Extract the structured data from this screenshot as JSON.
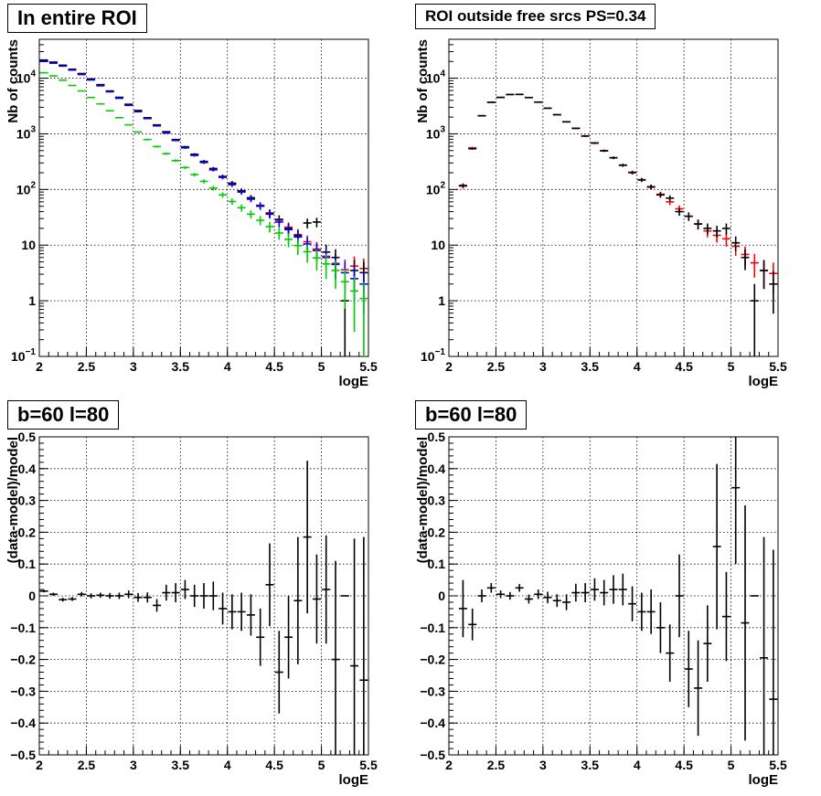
{
  "chart_data": [
    {
      "id": "p1",
      "type": "scatter",
      "title": "In entire ROI",
      "xlabel": "logE",
      "ylabel": "Nb of counts",
      "xlim": [
        2,
        5.5
      ],
      "ylim": [
        0.1,
        50000
      ],
      "log_y": true,
      "grid": true,
      "x_tick_labels": [
        "2",
        "2.5",
        "3",
        "3.5",
        "4",
        "4.5",
        "5",
        "5.5"
      ],
      "y_tick_labels": [
        "10^-1",
        "1",
        "10",
        "10^2",
        "10^3",
        "10^4"
      ],
      "x": [
        2.05,
        2.15,
        2.25,
        2.35,
        2.45,
        2.55,
        2.65,
        2.75,
        2.85,
        2.95,
        3.05,
        3.15,
        3.25,
        3.35,
        3.45,
        3.55,
        3.65,
        3.75,
        3.85,
        3.95,
        4.05,
        4.15,
        4.25,
        4.35,
        4.45,
        4.55,
        4.65,
        4.75,
        4.85,
        4.95,
        5.05,
        5.15,
        5.25,
        5.35,
        5.45
      ],
      "series": [
        {
          "color": "#ff0000",
          "values": [
            21000,
            19500,
            17000,
            14500,
            12000,
            9700,
            7600,
            5900,
            4500,
            3400,
            2600,
            1950,
            1450,
            1080,
            790,
            580,
            430,
            320,
            235,
            172,
            128,
            95,
            70,
            52,
            38,
            28,
            21,
            15.5,
            11.5,
            8.5,
            6.3,
            4.7,
            3.6,
            4.2,
            3.8
          ]
        },
        {
          "color": "#000000",
          "values": [
            21200,
            19300,
            17100,
            14400,
            12100,
            9600,
            7650,
            5850,
            4520,
            3380,
            2620,
            1940,
            1440,
            1090,
            785,
            585,
            425,
            318,
            238,
            170,
            130,
            94,
            71,
            51,
            37,
            29,
            20,
            14.8,
            25,
            26,
            7.5,
            6,
            1,
            3.5,
            3.2
          ]
        },
        {
          "color": "#0000ff",
          "values": [
            20000,
            18600,
            16500,
            14000,
            11600,
            9300,
            7300,
            5700,
            4350,
            3250,
            2500,
            1880,
            1390,
            1040,
            760,
            560,
            410,
            305,
            225,
            165,
            122,
            90,
            67,
            50,
            36,
            26,
            19,
            14,
            10.5,
            8,
            6,
            4.5,
            3.2,
            2.5,
            2
          ]
        },
        {
          "color": "#00cc00",
          "values": [
            12500,
            11000,
            9200,
            7400,
            5900,
            4500,
            3450,
            2600,
            1950,
            1450,
            1080,
            790,
            590,
            440,
            330,
            248,
            185,
            140,
            106,
            80,
            61,
            47,
            36,
            28,
            21.5,
            16.5,
            12.7,
            9.8,
            7.6,
            5.9,
            4.6,
            3.5,
            2.2,
            1.5,
            1.1
          ]
        }
      ]
    },
    {
      "id": "p2",
      "type": "scatter",
      "title": "ROI outside free srcs PS=0.34",
      "xlabel": "logE",
      "ylabel": "Nb of counts",
      "xlim": [
        2,
        5.5
      ],
      "ylim": [
        0.1,
        50000
      ],
      "log_y": true,
      "grid": true,
      "x_tick_labels": [
        "2",
        "2.5",
        "3",
        "3.5",
        "4",
        "4.5",
        "5",
        "5.5"
      ],
      "y_tick_labels": [
        "10^-1",
        "1",
        "10",
        "10^2",
        "10^3",
        "10^4"
      ],
      "x": [
        2.15,
        2.25,
        2.35,
        2.45,
        2.55,
        2.65,
        2.75,
        2.85,
        2.95,
        3.05,
        3.15,
        3.25,
        3.35,
        3.45,
        3.55,
        3.65,
        3.75,
        3.85,
        3.95,
        4.05,
        4.15,
        4.25,
        4.35,
        4.45,
        4.55,
        4.65,
        4.75,
        4.85,
        4.95,
        5.05,
        5.15,
        5.25,
        5.35,
        5.45
      ],
      "series": [
        {
          "color": "#ff0000",
          "values": [
            115,
            560,
            2100,
            3700,
            4500,
            5100,
            5100,
            4500,
            3700,
            2900,
            2200,
            1650,
            1250,
            920,
            680,
            500,
            370,
            275,
            200,
            150,
            110,
            82,
            60,
            45,
            33,
            24,
            18,
            15,
            13,
            9.5,
            6.8,
            4.8,
            3.5,
            3.1
          ]
        },
        {
          "color": "#000000",
          "values": [
            118,
            540,
            2120,
            3680,
            4520,
            5080,
            5120,
            4480,
            3720,
            2880,
            2210,
            1640,
            1260,
            910,
            685,
            495,
            372,
            272,
            203,
            148,
            112,
            80,
            70,
            40,
            33,
            24,
            20,
            18,
            20,
            11,
            6,
            1,
            3.5,
            2
          ]
        }
      ]
    },
    {
      "id": "p3",
      "type": "scatter",
      "title": "b=60 l=80",
      "xlabel": "logE",
      "ylabel": "(data-model)/model",
      "xlim": [
        2,
        5.5
      ],
      "ylim": [
        -0.5,
        0.5
      ],
      "log_y": false,
      "grid": true,
      "x_tick_labels": [
        "2",
        "2.5",
        "3",
        "3.5",
        "4",
        "4.5",
        "5",
        "5.5"
      ],
      "y_tick_labels": [
        "-0.5",
        "-0.4",
        "-0.3",
        "-0.2",
        "-0.1",
        "0",
        "0.1",
        "0.2",
        "0.3",
        "0.4",
        "0.5"
      ],
      "x": [
        2.05,
        2.15,
        2.25,
        2.35,
        2.45,
        2.55,
        2.65,
        2.75,
        2.85,
        2.95,
        3.05,
        3.15,
        3.25,
        3.35,
        3.45,
        3.55,
        3.65,
        3.75,
        3.85,
        3.95,
        4.05,
        4.15,
        4.25,
        4.35,
        4.45,
        4.55,
        4.65,
        4.75,
        4.85,
        4.95,
        5.05,
        5.15,
        5.25,
        5.35,
        5.45
      ],
      "series": [
        {
          "color": "#000000",
          "values": [
            0.015,
            0.005,
            -0.012,
            -0.01,
            0.005,
            0.0,
            0.002,
            0.0,
            0.0,
            0.005,
            -0.005,
            -0.005,
            -0.03,
            0.01,
            0.01,
            0.02,
            0.0,
            0.0,
            0.0,
            -0.04,
            -0.05,
            -0.05,
            -0.06,
            -0.13,
            0.035,
            -0.24,
            -0.13,
            -0.015,
            0.185,
            -0.01,
            0.02,
            -0.2,
            0.0,
            -0.22,
            -0.265
          ],
          "errors": [
            0.004,
            0.005,
            0.006,
            0.006,
            0.007,
            0.008,
            0.008,
            0.009,
            0.01,
            0.012,
            0.014,
            0.016,
            0.02,
            0.025,
            0.03,
            0.03,
            0.035,
            0.04,
            0.045,
            0.05,
            0.055,
            0.06,
            0.065,
            0.09,
            0.13,
            0.13,
            0.13,
            0.2,
            0.24,
            0.14,
            0.17,
            0.31,
            0.0,
            0.4,
            0.45
          ]
        }
      ]
    },
    {
      "id": "p4",
      "type": "scatter",
      "title": "b=60 l=80",
      "xlabel": "logE",
      "ylabel": "(data-model)/model",
      "xlim": [
        2,
        5.5
      ],
      "ylim": [
        -0.5,
        0.5
      ],
      "log_y": false,
      "grid": true,
      "x_tick_labels": [
        "2",
        "2.5",
        "3",
        "3.5",
        "4",
        "4.5",
        "5",
        "5.5"
      ],
      "y_tick_labels": [
        "-0.5",
        "-0.4",
        "-0.3",
        "-0.2",
        "-0.1",
        "0",
        "0.1",
        "0.2",
        "0.3",
        "0.4",
        "0.5"
      ],
      "x": [
        2.15,
        2.25,
        2.35,
        2.45,
        2.55,
        2.65,
        2.75,
        2.85,
        2.95,
        3.05,
        3.15,
        3.25,
        3.35,
        3.45,
        3.55,
        3.65,
        3.75,
        3.85,
        3.95,
        4.05,
        4.15,
        4.25,
        4.35,
        4.45,
        4.55,
        4.65,
        4.75,
        4.85,
        4.95,
        5.05,
        5.15,
        5.25,
        5.35,
        5.45
      ],
      "series": [
        {
          "color": "#000000",
          "values": [
            -0.04,
            -0.09,
            0.0,
            0.025,
            0.005,
            0.0,
            0.025,
            -0.01,
            0.005,
            -0.005,
            -0.015,
            -0.02,
            0.01,
            0.01,
            0.02,
            0.01,
            0.02,
            0.02,
            -0.025,
            -0.05,
            -0.05,
            -0.1,
            -0.18,
            0.0,
            -0.23,
            -0.29,
            -0.15,
            0.155,
            -0.065,
            0.34,
            -0.085,
            0.0,
            -0.195,
            -0.325
          ],
          "errors": [
            0.09,
            0.05,
            0.02,
            0.015,
            0.012,
            0.012,
            0.012,
            0.014,
            0.015,
            0.018,
            0.02,
            0.025,
            0.028,
            0.03,
            0.035,
            0.04,
            0.045,
            0.05,
            0.055,
            0.06,
            0.07,
            0.08,
            0.09,
            0.13,
            0.12,
            0.15,
            0.12,
            0.26,
            0.14,
            0.24,
            0.37,
            0.0,
            0.38,
            0.47
          ]
        }
      ]
    }
  ]
}
